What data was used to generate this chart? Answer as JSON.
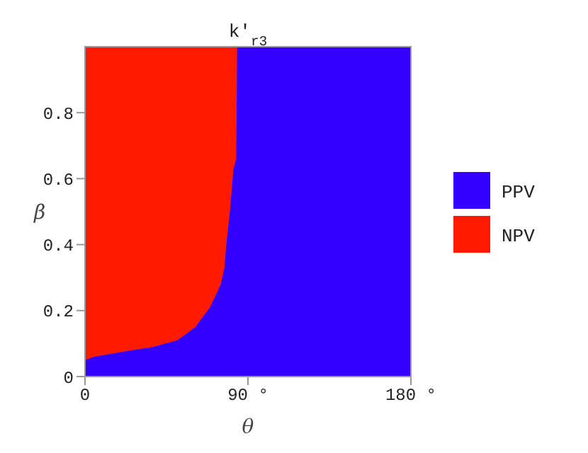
{
  "chart_data": {
    "type": "area",
    "stacked": true,
    "title": "k′$_{r3}$",
    "xlabel": "θ",
    "ylabel": "β",
    "x": [
      0,
      5,
      26,
      38,
      44,
      51,
      56,
      61,
      65,
      69,
      72.5,
      75,
      77,
      78,
      80,
      82,
      83.5,
      84,
      180
    ],
    "series": [
      {
        "name": "PPV",
        "color": "#3300ff",
        "values": [
          0.05,
          0.06,
          0.08,
          0.09,
          0.1,
          0.11,
          0.13,
          0.15,
          0.18,
          0.21,
          0.25,
          0.28,
          0.33,
          0.4,
          0.5,
          0.63,
          0.66,
          1,
          1
        ]
      },
      {
        "name": "NPV",
        "color": "#ff1a00",
        "values": [
          0.95,
          0.94,
          0.92,
          0.91,
          0.9,
          0.89,
          0.87,
          0.85,
          0.82,
          0.79,
          0.75,
          0.72,
          0.67,
          0.6,
          0.5,
          0.37,
          0.34,
          0,
          0
        ]
      }
    ],
    "xlim": [
      0,
      180
    ],
    "xticks": [
      0,
      {
        "value": 90,
        "label": "90 °"
      },
      {
        "value": 180,
        "label": "180 °"
      }
    ],
    "ylim": [
      0,
      1
    ],
    "yticks": [
      0,
      0.2,
      0.4,
      0.6,
      0.8
    ],
    "legend": "right"
  }
}
